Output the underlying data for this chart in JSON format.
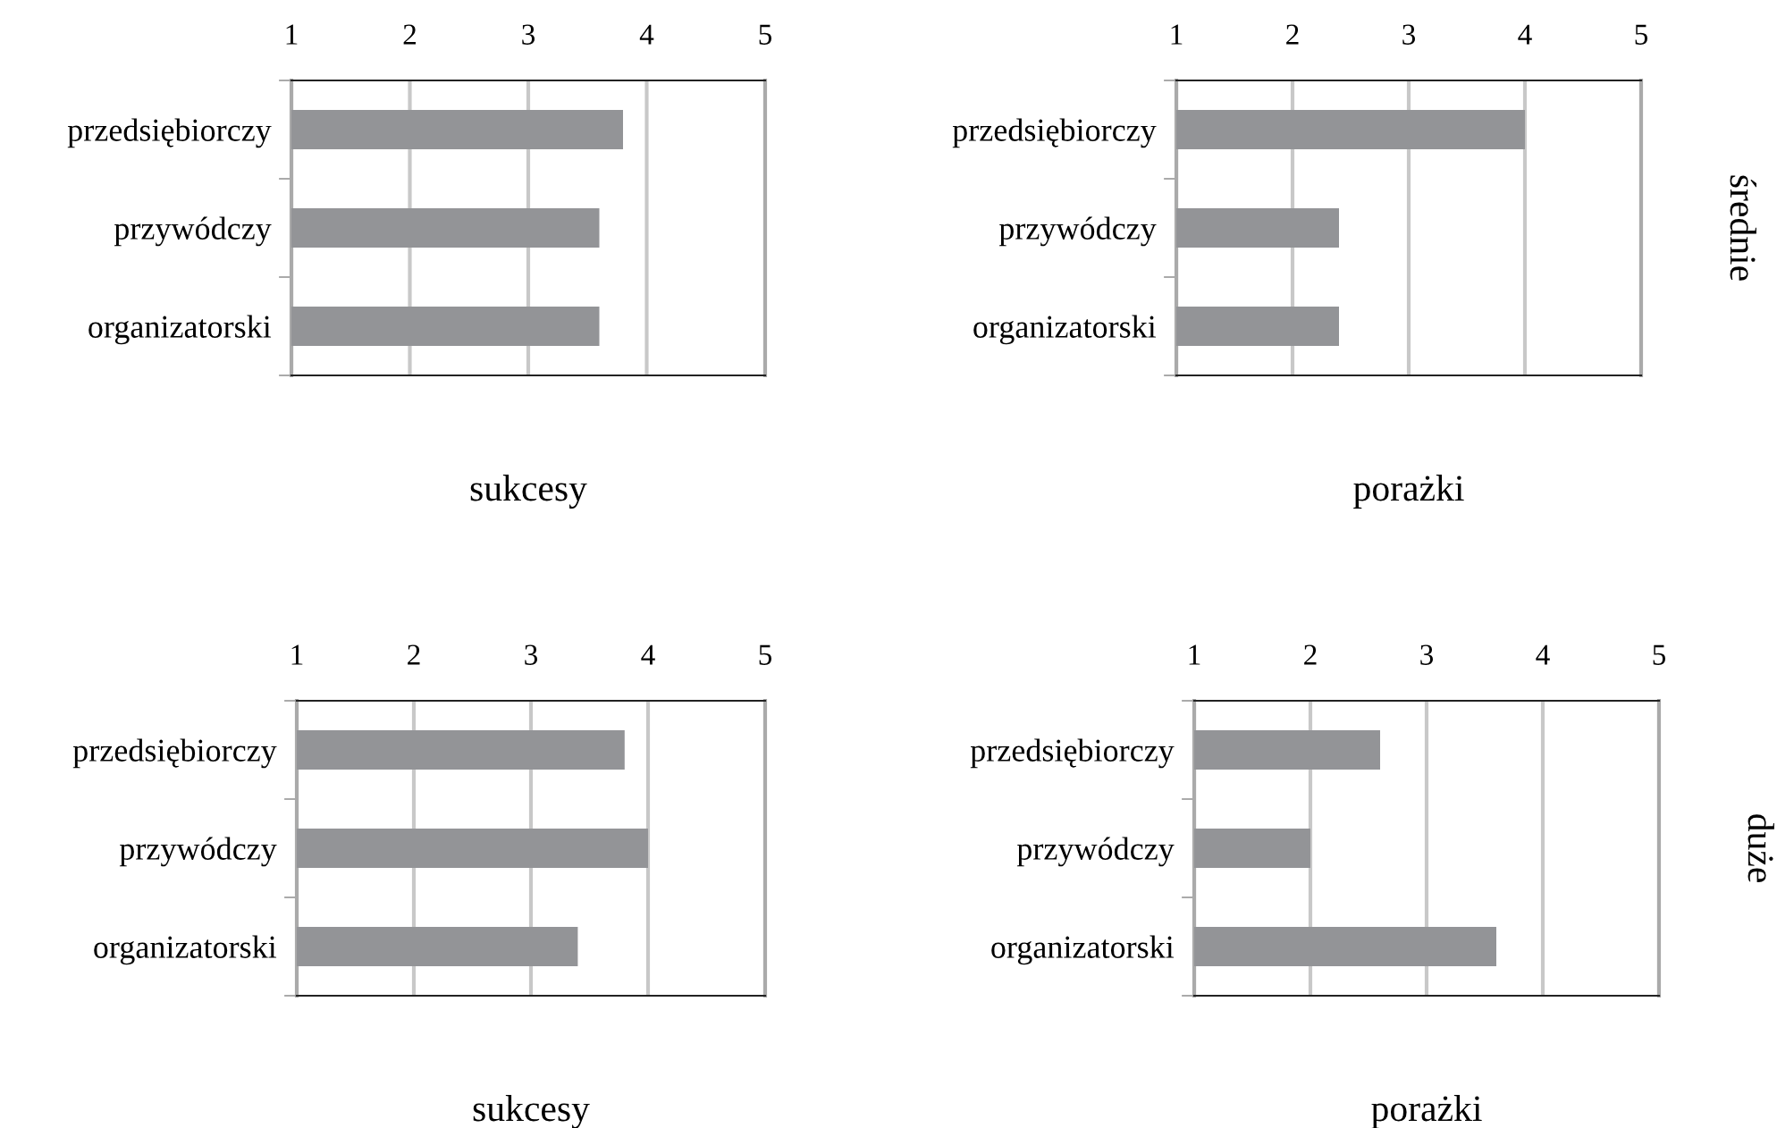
{
  "chart_data": [
    {
      "type": "bar",
      "orientation": "horizontal",
      "categories": [
        "przedsiębiorczy",
        "przywódczy",
        "organizatorski"
      ],
      "values": [
        3.8,
        3.6,
        3.6
      ],
      "color": "#939497",
      "xlim": [
        1,
        5
      ],
      "xticks": [
        1,
        2,
        3,
        4,
        5
      ],
      "xlabel": "sukcesy",
      "grid": "x"
    },
    {
      "type": "bar",
      "orientation": "horizontal",
      "categories": [
        "przedsiębiorczy",
        "przywódczy",
        "organizatorski"
      ],
      "values": [
        4.0,
        2.4,
        2.4
      ],
      "color": "#939497",
      "xlim": [
        1,
        5
      ],
      "xticks": [
        1,
        2,
        3,
        4,
        5
      ],
      "xlabel": "porażki",
      "grid": "x",
      "annotations": [
        "średnie"
      ]
    },
    {
      "type": "bar",
      "orientation": "horizontal",
      "categories": [
        "przedsiębiorczy",
        "przywódczy",
        "organizatorski"
      ],
      "values": [
        3.8,
        4.0,
        3.4
      ],
      "color": "#939497",
      "xlim": [
        1,
        5
      ],
      "xticks": [
        1,
        2,
        3,
        4,
        5
      ],
      "xlabel": "sukcesy",
      "grid": "x"
    },
    {
      "type": "bar",
      "orientation": "horizontal",
      "categories": [
        "przedsiębiorczy",
        "przywódczy",
        "organizatorski"
      ],
      "values": [
        2.6,
        2.0,
        3.6
      ],
      "color": "#939497",
      "xlim": [
        1,
        5
      ],
      "xticks": [
        1,
        2,
        3,
        4,
        5
      ],
      "xlabel": "porażki",
      "grid": "x",
      "annotations": [
        "duże"
      ]
    }
  ]
}
